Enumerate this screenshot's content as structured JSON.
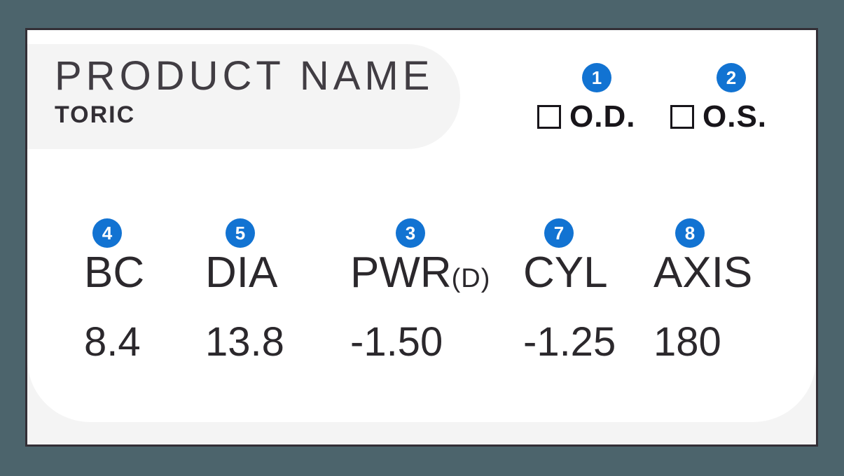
{
  "diagram": {
    "product_name": "PRODUCT NAME",
    "product_type": "TORIC",
    "eyes": [
      {
        "badge": "1",
        "label": "O.D."
      },
      {
        "badge": "2",
        "label": "O.S."
      }
    ],
    "parameters": [
      {
        "badge": "4",
        "label": "BC",
        "suffix": "",
        "value": "8.4"
      },
      {
        "badge": "5",
        "label": "DIA",
        "suffix": "",
        "value": "13.8"
      },
      {
        "badge": "3",
        "label": "PWR",
        "suffix": "(D)",
        "value": "-1.50"
      },
      {
        "badge": "7",
        "label": "CYL",
        "suffix": "",
        "value": "-1.25"
      },
      {
        "badge": "8",
        "label": "AXIS",
        "suffix": "",
        "value": "180"
      }
    ],
    "colors": {
      "badge_blue": "#1273d2",
      "page_background": "#4c646c",
      "panel_gray": "#f4f4f4"
    }
  }
}
